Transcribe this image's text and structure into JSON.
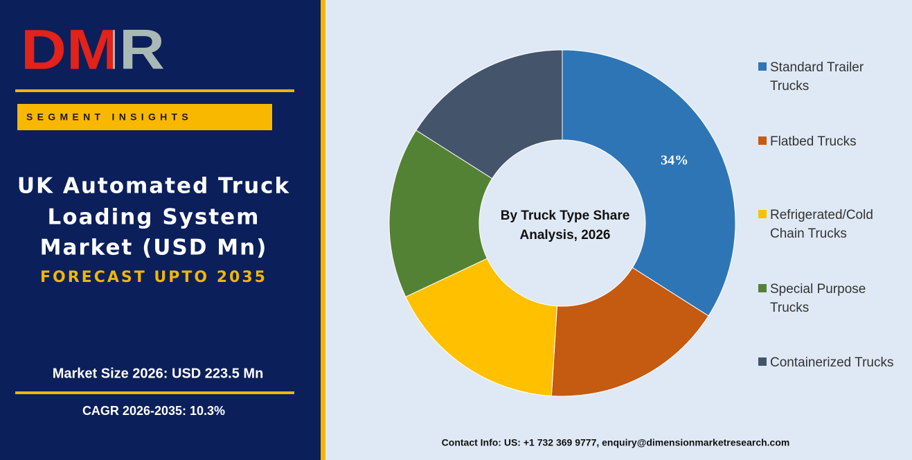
{
  "logo": "DMR",
  "badge": "SEGMENT INSIGHTS",
  "title_lines": [
    "UK Automated Truck",
    "Loading System",
    "Market (USD Mn)"
  ],
  "forecast": "FORECAST UPTO 2035",
  "market_size": "Market Size 2026: USD 223.5 Mn",
  "cagr": "CAGR 2026-2035: 10.3%",
  "contact": "Contact Info: US: +1 732 369 9777, enquiry@dimensionmarketresearch.com",
  "chart_data": {
    "type": "donut",
    "center_label_lines": [
      "By Truck Type Share",
      "Analysis, 2026"
    ],
    "categories": [
      "Standard Trailer Trucks",
      "Flatbed Trucks",
      "Refrigerated/Cold Chain Trucks",
      "Special Purpose Trucks",
      "Containerized Trucks"
    ],
    "values": [
      34,
      17,
      17,
      16,
      16
    ],
    "value_labels": [
      "34%",
      null,
      null,
      null,
      null
    ],
    "colors": [
      "#2e75b6",
      "#c55a11",
      "#ffc000",
      "#548235",
      "#44546a"
    ]
  }
}
